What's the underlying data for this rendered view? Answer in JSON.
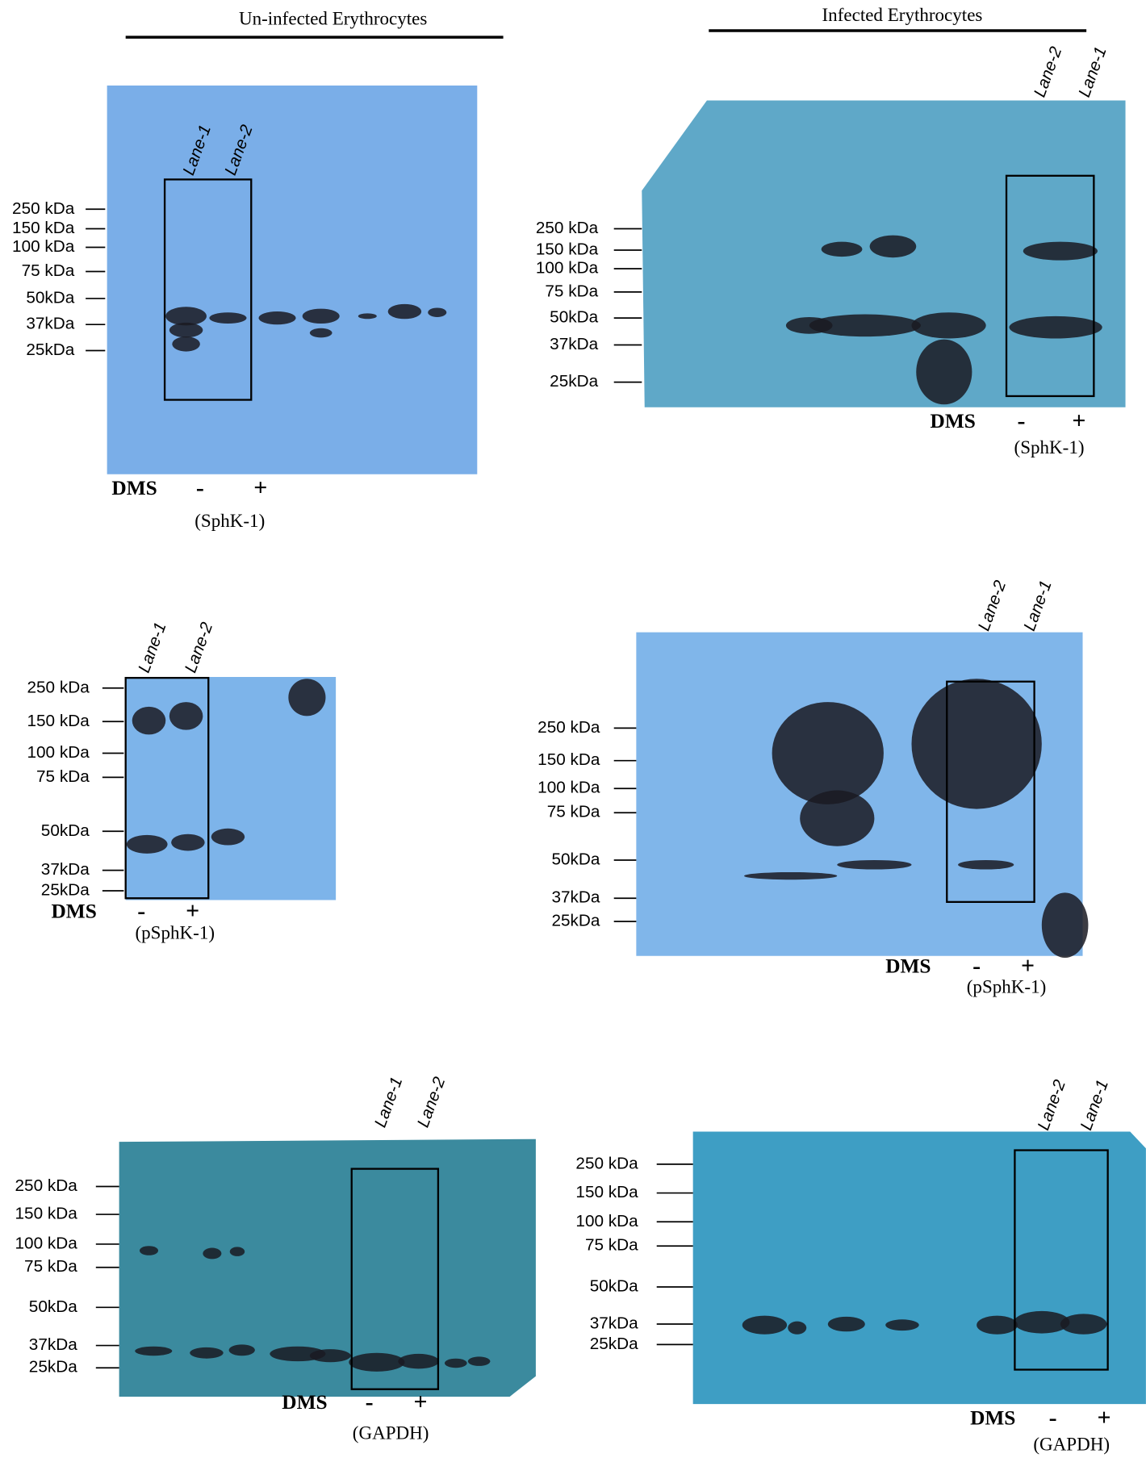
{
  "groups": [
    {
      "title": "Un-infected Erythrocytes"
    },
    {
      "title": "Infected Erythrocytes"
    }
  ],
  "panels": [
    {
      "markers": [
        "250 kDa",
        "150 kDa",
        "100 kDa",
        "75 kDa",
        "50kDa",
        "37kDa",
        "25kDa"
      ],
      "lanes": [
        "Lane-1",
        "Lane-2"
      ],
      "treatment": "DMS",
      "conditions": [
        "-",
        "+"
      ],
      "protein": "(SphK-1)"
    },
    {
      "markers": [
        "250 kDa",
        "150 kDa",
        "100 kDa",
        "75 kDa",
        "50kDa",
        "37kDa",
        "25kDa"
      ],
      "lanes": [
        "Lane-2",
        "Lane-1"
      ],
      "treatment": "DMS",
      "conditions": [
        "-",
        "+"
      ],
      "protein": "(SphK-1)"
    },
    {
      "markers": [
        "250 kDa",
        "150 kDa",
        "100 kDa",
        "75 kDa",
        "50kDa",
        "37kDa",
        "25kDa"
      ],
      "lanes": [
        "Lane-1",
        "Lane-2"
      ],
      "treatment": "DMS",
      "conditions": [
        "-",
        "+"
      ],
      "protein": "(pSphK-1)"
    },
    {
      "markers": [
        "250 kDa",
        "150 kDa",
        "100 kDa",
        "75 kDa",
        "50kDa",
        "37kDa",
        "25kDa"
      ],
      "lanes": [
        "Lane-2",
        "Lane-1"
      ],
      "treatment": "DMS",
      "conditions": [
        "-",
        "+"
      ],
      "protein": "(pSphK-1)"
    },
    {
      "markers": [
        "250 kDa",
        "150 kDa",
        "100 kDa",
        "75 kDa",
        "50kDa",
        "37kDa",
        "25kDa"
      ],
      "lanes": [
        "Lane-1",
        "Lane-2"
      ],
      "treatment": "DMS",
      "conditions": [
        "-",
        "+"
      ],
      "protein": "(GAPDH)"
    },
    {
      "markers": [
        "250 kDa",
        "150 kDa",
        "100 kDa",
        "75 kDa",
        "50kDa",
        "37kDa",
        "25kDa"
      ],
      "lanes": [
        "Lane-2",
        "Lane-1"
      ],
      "treatment": "DMS",
      "conditions": [
        "-",
        "+"
      ],
      "protein": "(GAPDH)"
    }
  ]
}
